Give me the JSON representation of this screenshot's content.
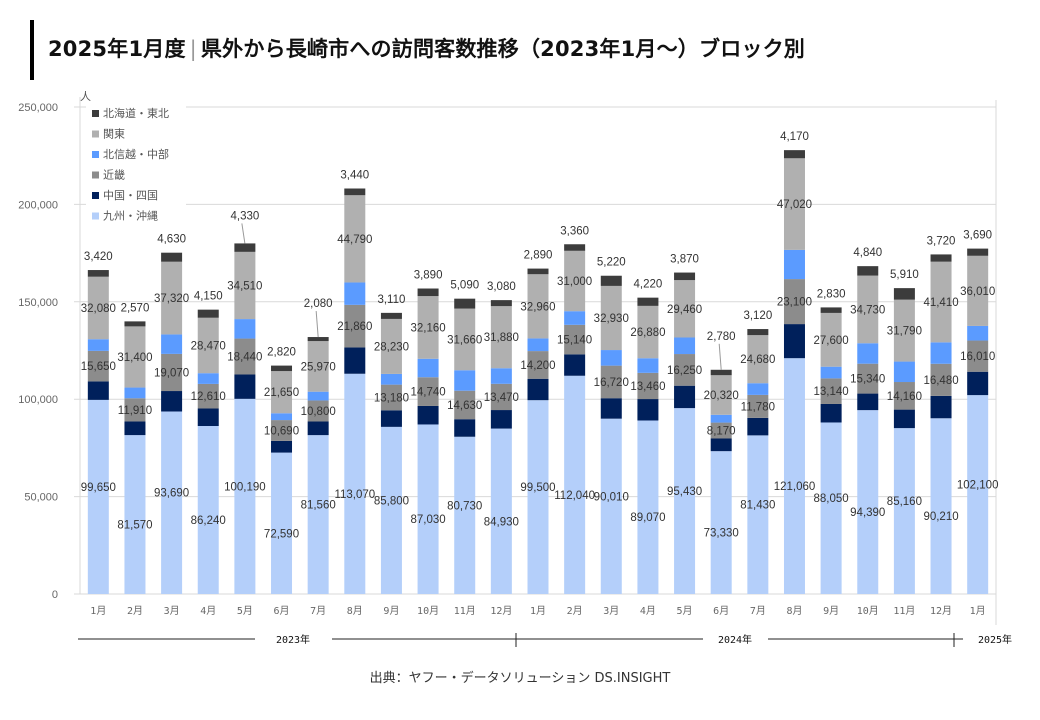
{
  "title": {
    "prefix": "2025年1月度",
    "separator": "｜",
    "main": "県外から長崎市への訪問客数推移（2023年1月〜）ブロック別"
  },
  "source": "出典：ヤフー・データソリューション DS.INSIGHT",
  "chart_data": {
    "type": "bar",
    "stacked": true,
    "title": "2025年1月度｜県外から長崎市への訪問客数推移（2023年1月〜）ブロック別",
    "ylabel": "人",
    "xlabel": "",
    "ylim": [
      0,
      250000
    ],
    "yticks": [
      0,
      50000,
      100000,
      150000,
      200000,
      250000
    ],
    "ytick_labels": [
      "0",
      "50,000",
      "100,000",
      "150,000",
      "200,000",
      "250,000"
    ],
    "grid": true,
    "legend_position": "top-left",
    "categories": [
      "1月",
      "2月",
      "3月",
      "4月",
      "5月",
      "6月",
      "7月",
      "8月",
      "9月",
      "10月",
      "11月",
      "12月",
      "1月",
      "2月",
      "3月",
      "4月",
      "5月",
      "6月",
      "7月",
      "8月",
      "9月",
      "10月",
      "11月",
      "12月",
      "1月"
    ],
    "year_groups": [
      {
        "label": "2023年",
        "start": 0,
        "end": 11
      },
      {
        "label": "2024年",
        "start": 12,
        "end": 23
      },
      {
        "label": "2025年",
        "start": 24,
        "end": 24
      }
    ],
    "series": [
      {
        "name": "九州・沖縄",
        "color": "#B4CFFA",
        "labeled": true,
        "values": [
          99650,
          81570,
          93690,
          86240,
          100190,
          72590,
          81560,
          113070,
          85800,
          87030,
          80730,
          84930,
          99500,
          112040,
          90010,
          89070,
          95430,
          73330,
          81430,
          121060,
          88050,
          94390,
          85160,
          90210,
          102100
        ]
      },
      {
        "name": "中国・四国",
        "color": "#00205B",
        "labeled": false,
        "values": [
          9500,
          7000,
          10500,
          9000,
          12500,
          6000,
          7000,
          13500,
          8500,
          9500,
          9000,
          9500,
          11000,
          11000,
          10500,
          11000,
          11500,
          6500,
          9000,
          17500,
          9500,
          8500,
          9500,
          11500,
          12000
        ]
      },
      {
        "name": "近畿",
        "color": "#8C8C8C",
        "labeled": true,
        "values": [
          15650,
          11910,
          19070,
          12610,
          18440,
          10690,
          10800,
          21860,
          13180,
          14740,
          14630,
          13470,
          14200,
          15140,
          16720,
          13460,
          16250,
          8170,
          11780,
          23100,
          13140,
          15340,
          14160,
          16480,
          16010
        ]
      },
      {
        "name": "北信越・中部",
        "color": "#5B9BFF",
        "labeled": false,
        "values": [
          6000,
          5500,
          10000,
          5500,
          10000,
          3500,
          4500,
          11500,
          5500,
          9500,
          10500,
          8000,
          6500,
          7000,
          8000,
          7500,
          8500,
          4000,
          6000,
          15000,
          6000,
          10500,
          10500,
          11000,
          7500
        ]
      },
      {
        "name": "関東",
        "color": "#B0B0B0",
        "labeled": true,
        "values": [
          32080,
          31400,
          37320,
          28470,
          34510,
          21650,
          25970,
          44790,
          28230,
          32160,
          31660,
          31880,
          32960,
          31000,
          32930,
          26880,
          29460,
          20320,
          24680,
          47020,
          27600,
          34730,
          31790,
          41410,
          36010
        ]
      },
      {
        "name": "北海道・東北",
        "color": "#3C3C3C",
        "labeled": true,
        "values": [
          3420,
          2570,
          4630,
          4150,
          4330,
          2820,
          2080,
          3440,
          3110,
          3890,
          5090,
          3080,
          2890,
          3360,
          5220,
          4220,
          3870,
          2780,
          3120,
          4170,
          2830,
          4840,
          5910,
          3720,
          3690
        ]
      }
    ],
    "legend": [
      "北海道・東北",
      "関東",
      "北信越・中部",
      "近畿",
      "中国・四国",
      "九州・沖縄"
    ]
  }
}
